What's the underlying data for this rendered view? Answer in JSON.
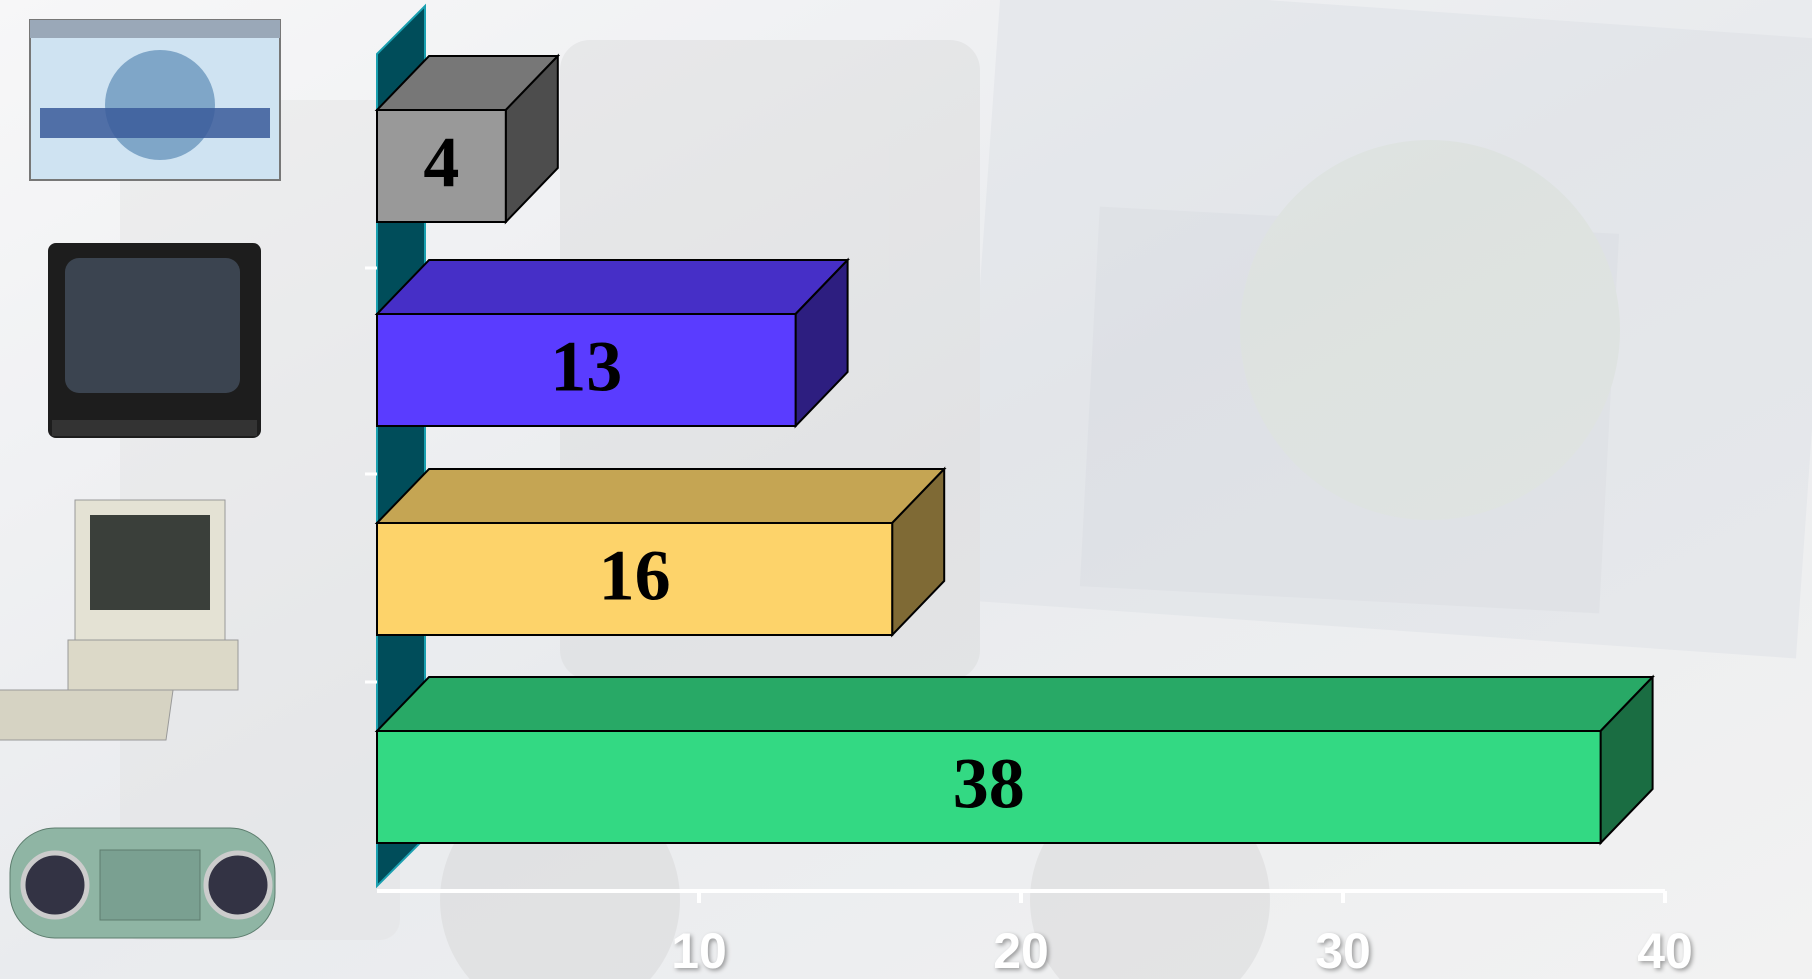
{
  "chart_data": {
    "type": "bar",
    "orientation": "horizontal",
    "categories": [
      null,
      null,
      null,
      null
    ],
    "values": [
      4,
      13,
      16,
      38
    ],
    "colors": [
      "#999999",
      "#5a3cff",
      "#fdd36a",
      "#33d983"
    ],
    "xlim": [
      0,
      40
    ],
    "xticks": [
      10,
      20,
      30,
      40
    ]
  }
}
